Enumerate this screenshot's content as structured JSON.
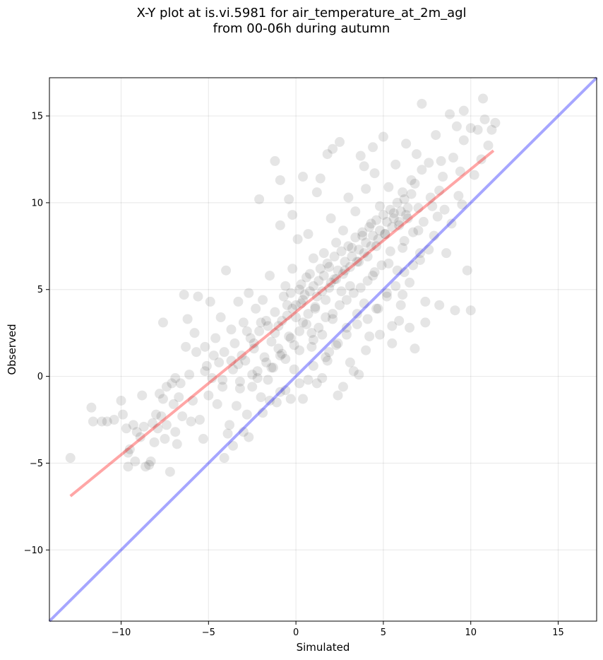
{
  "chart_data": {
    "type": "scatter",
    "title": "X-Y plot at is.vi.5981 for air_temperature_at_2m_agl",
    "subtitle": "from 00-06h during autumn",
    "xlabel": "Simulated",
    "ylabel": "Observed",
    "xlim": [
      -14.1,
      17.2
    ],
    "ylim": [
      -14.1,
      17.2
    ],
    "xticks": [
      -10,
      -5,
      0,
      5,
      10,
      15
    ],
    "yticks": [
      -10,
      -5,
      0,
      5,
      10,
      15
    ],
    "xtick_labels": [
      "−10",
      "−5",
      "0",
      "5",
      "10",
      "15"
    ],
    "ytick_labels": [
      "−10",
      "−5",
      "0",
      "5",
      "10",
      "15"
    ],
    "grid": true,
    "marker_color": "#000000",
    "marker_alpha": 0.1,
    "points": [
      [
        -12.9,
        -4.7
      ],
      [
        -11.7,
        -1.8
      ],
      [
        -11.1,
        -2.6
      ],
      [
        -11.6,
        -2.6
      ],
      [
        -10,
        -1.4
      ],
      [
        -9.7,
        -3
      ],
      [
        -9.6,
        -5.2
      ],
      [
        -9.5,
        -4.2
      ],
      [
        -9.3,
        -2.8
      ],
      [
        -9.1,
        -3.2
      ],
      [
        -8.8,
        -1.1
      ],
      [
        -8.7,
        -2.9
      ],
      [
        -8.6,
        -5.2
      ],
      [
        -8.3,
        -4.9
      ],
      [
        -8.2,
        -2.7
      ],
      [
        -8,
        -2.2
      ],
      [
        -7.9,
        -3
      ],
      [
        -7.7,
        -2.3
      ],
      [
        -7.6,
        -1.3
      ],
      [
        -7.5,
        -3.6
      ],
      [
        -7.4,
        -0.6
      ],
      [
        -7.2,
        -5.5
      ],
      [
        -7.1,
        -0.4
      ],
      [
        -7,
        -1.6
      ],
      [
        -6.9,
        -3.2
      ],
      [
        -6.6,
        -0.4
      ],
      [
        -6.5,
        -2.3
      ],
      [
        -6.4,
        4.7
      ],
      [
        -6.2,
        3.3
      ],
      [
        -6.1,
        0.1
      ],
      [
        -5.9,
        -1.4
      ],
      [
        -5.7,
        1.4
      ],
      [
        -5.6,
        4.6
      ],
      [
        -5.5,
        -2.5
      ],
      [
        -5.3,
        -3.6
      ],
      [
        -5.2,
        1.7
      ],
      [
        -5.1,
        0.6
      ],
      [
        -5,
        -1.1
      ],
      [
        -4.9,
        4.3
      ],
      [
        -4.8,
        -0.1
      ],
      [
        -4.6,
        2.2
      ],
      [
        -4.5,
        -1.6
      ],
      [
        -4.4,
        0.8
      ],
      [
        -4.3,
        3.4
      ],
      [
        -4.2,
        -0.6
      ],
      [
        -4.1,
        1.4
      ],
      [
        -4,
        6.1
      ],
      [
        -3.9,
        -3.3
      ],
      [
        -3.8,
        -2.8
      ],
      [
        -3.7,
        2.7
      ],
      [
        -3.6,
        0.4
      ],
      [
        -3.5,
        1.9
      ],
      [
        -3.4,
        -1.7
      ],
      [
        -3.3,
        4.3
      ],
      [
        -3.2,
        -0.3
      ],
      [
        -3.1,
        1.2
      ],
      [
        -3,
        3.1
      ],
      [
        -2.9,
        0.9
      ],
      [
        -2.8,
        -2.2
      ],
      [
        -2.7,
        4.8
      ],
      [
        -2.6,
        2.2
      ],
      [
        -2.5,
        -0.6
      ],
      [
        -2.4,
        1.6
      ],
      [
        -2.3,
        3.9
      ],
      [
        -2.2,
        0.3
      ],
      [
        -2.1,
        2.6
      ],
      [
        -2,
        -1.2
      ],
      [
        -1.9,
        4.4
      ],
      [
        -1.8,
        1.1
      ],
      [
        -1.7,
        3.2
      ],
      [
        -1.6,
        -0.2
      ],
      [
        -1.5,
        5.8
      ],
      [
        -1.4,
        2
      ],
      [
        -1.3,
        0.5
      ],
      [
        -1.2,
        3.7
      ],
      [
        -1.1,
        -1.5
      ],
      [
        -1,
        2.9
      ],
      [
        -0.9,
        8.7
      ],
      [
        -0.8,
        1.3
      ],
      [
        -0.7,
        4.6
      ],
      [
        -0.6,
        -0.8
      ],
      [
        -0.5,
        3.5
      ],
      [
        -0.4,
        10.2
      ],
      [
        -0.3,
        2.2
      ],
      [
        -0.2,
        6.2
      ],
      [
        -0.1,
        0.4
      ],
      [
        0,
        4.1
      ],
      [
        0.1,
        7.9
      ],
      [
        0.2,
        2.6
      ],
      [
        0.3,
        5.3
      ],
      [
        0.4,
        -1.3
      ],
      [
        0.5,
        4.7
      ],
      [
        0.6,
        3
      ],
      [
        0.7,
        8.2
      ],
      [
        0.8,
        5.9
      ],
      [
        0.9,
        1.7
      ],
      [
        1,
        6.8
      ],
      [
        1.1,
        3.9
      ],
      [
        1.2,
        -0.4
      ],
      [
        1.3,
        5.5
      ],
      [
        1.4,
        11.4
      ],
      [
        1.5,
        2.4
      ],
      [
        1.6,
        7.1
      ],
      [
        1.7,
        4.4
      ],
      [
        1.8,
        0.9
      ],
      [
        1.9,
        6.3
      ],
      [
        2,
        9.1
      ],
      [
        2.1,
        3.3
      ],
      [
        2.2,
        5.6
      ],
      [
        2.3,
        7.7
      ],
      [
        2.4,
        1.9
      ],
      [
        2.5,
        13.5
      ],
      [
        2.6,
        4.9
      ],
      [
        2.7,
        8.4
      ],
      [
        2.8,
        6.1
      ],
      [
        2.9,
        2.8
      ],
      [
        3,
        10.3
      ],
      [
        3.1,
        5.2
      ],
      [
        3.2,
        7.4
      ],
      [
        3.3,
        0.3
      ],
      [
        3.4,
        9.5
      ],
      [
        3.5,
        3.6
      ],
      [
        3.6,
        6.6
      ],
      [
        3.7,
        12.7
      ],
      [
        3.8,
        8.1
      ],
      [
        3.9,
        4.2
      ],
      [
        4,
        10.8
      ],
      [
        4.1,
        6.9
      ],
      [
        4.2,
        2.3
      ],
      [
        4.3,
        8.8
      ],
      [
        4.4,
        5.8
      ],
      [
        4.5,
        11.7
      ],
      [
        4.6,
        7.5
      ],
      [
        4.7,
        3.9
      ],
      [
        4.8,
        9.8
      ],
      [
        4.9,
        6.4
      ],
      [
        5,
        13.8
      ],
      [
        5.1,
        8.2
      ],
      [
        5.2,
        4.6
      ],
      [
        5.3,
        10.9
      ],
      [
        5.4,
        7.2
      ],
      [
        5.5,
        2.9
      ],
      [
        5.6,
        9.4
      ],
      [
        5.7,
        12.2
      ],
      [
        5.8,
        6.1
      ],
      [
        5.9,
        8.7
      ],
      [
        6,
        4.1
      ],
      [
        6.1,
        10.6
      ],
      [
        6.2,
        7.8
      ],
      [
        6.3,
        13.4
      ],
      [
        6.4,
        9.1
      ],
      [
        6.5,
        5.4
      ],
      [
        6.6,
        11.3
      ],
      [
        6.7,
        8.3
      ],
      [
        6.8,
        1.6
      ],
      [
        6.9,
        12.8
      ],
      [
        7,
        9.7
      ],
      [
        7.1,
        6.7
      ],
      [
        7.2,
        11.9
      ],
      [
        7.4,
        4.3
      ],
      [
        7.6,
        12.3
      ],
      [
        7.8,
        9.8
      ],
      [
        8,
        13.9
      ],
      [
        8.2,
        10.7
      ],
      [
        8.4,
        11.5
      ],
      [
        8.6,
        7.1
      ],
      [
        8.8,
        15.1
      ],
      [
        9,
        12.6
      ],
      [
        9.2,
        14.4
      ],
      [
        9.4,
        11.8
      ],
      [
        9.6,
        13.6
      ],
      [
        9.8,
        6.1
      ],
      [
        10,
        14.3
      ],
      [
        10.2,
        11.6
      ],
      [
        10.4,
        14.2
      ],
      [
        10.6,
        12.5
      ],
      [
        10.8,
        14.8
      ],
      [
        11,
        13.3
      ],
      [
        11.2,
        14.2
      ],
      [
        11.4,
        14.6
      ],
      [
        10.7,
        16
      ],
      [
        9.6,
        15.3
      ],
      [
        7.2,
        15.7
      ],
      [
        9.1,
        3.8
      ],
      [
        10,
        3.8
      ],
      [
        0.7,
        -0.2
      ],
      [
        1.5,
        -0.1
      ],
      [
        1.9,
        1.4
      ],
      [
        2.4,
        -1.1
      ],
      [
        3.1,
        0.8
      ],
      [
        -9.6,
        -4.4
      ],
      [
        -9.2,
        -4.9
      ],
      [
        -8.4,
        -5.1
      ],
      [
        -10.4,
        -2.5
      ],
      [
        -8.1,
        -3.8
      ],
      [
        -6.8,
        -3.9
      ],
      [
        -6,
        -2.6
      ],
      [
        -4.1,
        -4.7
      ],
      [
        -3.6,
        -4
      ],
      [
        -3,
        -3.2
      ],
      [
        -2.7,
        -3.5
      ],
      [
        -1.9,
        -2.1
      ],
      [
        -1.5,
        -1.4
      ],
      [
        -0.9,
        -0.9
      ],
      [
        -0.3,
        -1.3
      ],
      [
        0.2,
        -0.4
      ],
      [
        1,
        0.6
      ],
      [
        1.7,
        1.1
      ],
      [
        2.3,
        1.8
      ],
      [
        2.9,
        2.4
      ],
      [
        3.5,
        3
      ],
      [
        4.1,
        3.3
      ],
      [
        4.6,
        3.9
      ],
      [
        5.2,
        4.8
      ],
      [
        5.7,
        5.2
      ],
      [
        6.2,
        6
      ],
      [
        6.7,
        6.4
      ],
      [
        7.1,
        7.1
      ],
      [
        7.6,
        7.3
      ],
      [
        7.9,
        8.1
      ],
      [
        -0.8,
        3.2
      ],
      [
        -0.5,
        4.1
      ],
      [
        -0.3,
        4.8
      ],
      [
        0,
        3.4
      ],
      [
        0.2,
        5
      ],
      [
        0.4,
        4.4
      ],
      [
        0.6,
        5.7
      ],
      [
        0.8,
        4.9
      ],
      [
        1,
        5.2
      ],
      [
        1.2,
        4.6
      ],
      [
        1.4,
        6.2
      ],
      [
        1.6,
        5.8
      ],
      [
        1.8,
        6.5
      ],
      [
        2,
        5.4
      ],
      [
        2.2,
        6.9
      ],
      [
        2.4,
        6.1
      ],
      [
        2.6,
        7.2
      ],
      [
        2.8,
        6.6
      ],
      [
        3,
        7.5
      ],
      [
        3.2,
        6.9
      ],
      [
        3.4,
        8
      ],
      [
        3.6,
        7.3
      ],
      [
        3.8,
        8.3
      ],
      [
        4,
        7.7
      ],
      [
        4.2,
        8.6
      ],
      [
        4.4,
        8.1
      ],
      [
        4.6,
        9
      ],
      [
        4.8,
        8.4
      ],
      [
        5,
        9.3
      ],
      [
        5.2,
        8.9
      ],
      [
        5.4,
        9.6
      ],
      [
        5.6,
        9.1
      ],
      [
        5.8,
        10
      ],
      [
        6,
        9.5
      ],
      [
        6.2,
        10.2
      ],
      [
        6.4,
        9.7
      ],
      [
        6.6,
        10.5
      ],
      [
        -0.6,
        5.2
      ],
      [
        -0.2,
        3.9
      ],
      [
        0.3,
        4.2
      ],
      [
        0.7,
        3.6
      ],
      [
        1.1,
        4
      ],
      [
        1.5,
        4.9
      ],
      [
        1.9,
        5.1
      ],
      [
        2.3,
        5.6
      ],
      [
        2.7,
        5.9
      ],
      [
        3.1,
        6.3
      ],
      [
        3.5,
        6.6
      ],
      [
        3.9,
        7.1
      ],
      [
        4.3,
        7.5
      ],
      [
        4.7,
        7.9
      ],
      [
        5.1,
        8.2
      ],
      [
        5.5,
        8.6
      ],
      [
        5.9,
        8.9
      ],
      [
        6.3,
        9.3
      ],
      [
        -1.2,
        2.5
      ],
      [
        -1.6,
        2.9
      ],
      [
        -2,
        3.1
      ],
      [
        -2.4,
        1.9
      ],
      [
        -2.8,
        2.6
      ],
      [
        -1,
        1.6
      ],
      [
        -0.4,
        2.3
      ],
      [
        0.4,
        3.1
      ],
      [
        1.3,
        2.8
      ],
      [
        2.1,
        3.6
      ],
      [
        2.9,
        4.4
      ],
      [
        3.7,
        5.1
      ],
      [
        4.5,
        6
      ],
      [
        5.3,
        6.5
      ],
      [
        6.1,
        7.4
      ],
      [
        -3.3,
        0.7
      ],
      [
        -2.5,
        0.1
      ],
      [
        -1.7,
        0.8
      ],
      [
        -0.9,
        1.2
      ],
      [
        -0.1,
        1.8
      ],
      [
        0.9,
        2.5
      ],
      [
        1.7,
        3.4
      ],
      [
        2.5,
        4.1
      ],
      [
        3.3,
        4.8
      ],
      [
        4.1,
        5.5
      ],
      [
        -5.2,
        0.3
      ],
      [
        -4.7,
        1.2
      ],
      [
        -4.2,
        -0.2
      ],
      [
        -3.7,
        0.9
      ],
      [
        -3.2,
        -0.7
      ],
      [
        -2.2,
        -0.1
      ],
      [
        -1.4,
        0.5
      ],
      [
        -0.6,
        1
      ],
      [
        0.2,
        1.5
      ],
      [
        1,
        2.1
      ],
      [
        8.5,
        9.6
      ],
      [
        8.9,
        8.8
      ],
      [
        9.3,
        10.4
      ],
      [
        7.3,
        8.9
      ],
      [
        7.7,
        10.3
      ],
      [
        8.1,
        9.2
      ],
      [
        6.8,
        11.1
      ],
      [
        7,
        8.4
      ],
      [
        8.3,
        12.4
      ],
      [
        9.5,
        9.9
      ],
      [
        3.9,
        12.1
      ],
      [
        4.4,
        13.2
      ],
      [
        2.1,
        13.1
      ],
      [
        1.8,
        12.8
      ],
      [
        0.4,
        11.5
      ],
      [
        -1.2,
        12.4
      ],
      [
        -0.2,
        9.3
      ],
      [
        -2.1,
        10.2
      ],
      [
        -0.9,
        11.3
      ],
      [
        1.2,
        10.6
      ],
      [
        5.9,
        3.2
      ],
      [
        6.5,
        2.8
      ],
      [
        7.4,
        3.1
      ],
      [
        8.2,
        4.1
      ],
      [
        6.1,
        4.7
      ],
      [
        5.5,
        1.9
      ],
      [
        4.8,
        2.4
      ],
      [
        4,
        1.5
      ],
      [
        3.6,
        0.1
      ],
      [
        2.7,
        -0.6
      ],
      [
        -7.8,
        -1
      ],
      [
        -6.9,
        -0.1
      ],
      [
        -6.3,
        1.7
      ],
      [
        -7.4,
        -2.8
      ],
      [
        -8.9,
        -3.5
      ],
      [
        -9.9,
        -2.2
      ],
      [
        -10.8,
        -2.6
      ],
      [
        -7.6,
        3.1
      ],
      [
        -5.8,
        2.5
      ],
      [
        -6.7,
        -1.2
      ]
    ],
    "fit_line": {
      "color": "#ff0000",
      "alpha": 0.35,
      "x": [
        -12.9,
        11.3
      ],
      "y": [
        -6.9,
        13
      ]
    },
    "identity_line": {
      "color": "#0000ff",
      "alpha": 0.35,
      "x": [
        -14.1,
        17.2
      ],
      "y": [
        -14.1,
        17.2
      ]
    }
  }
}
